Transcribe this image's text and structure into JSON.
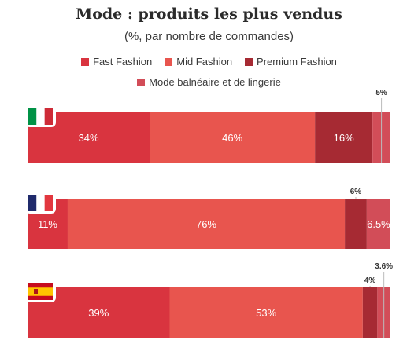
{
  "chart_data": {
    "type": "bar",
    "orientation": "horizontal",
    "stacked": true,
    "title": "Mode : produits les plus vendus",
    "subtitle": "(%, par nombre de commandes)",
    "series": [
      {
        "name": "Fast Fashion",
        "color": "#d9343f"
      },
      {
        "name": "Mid Fashion",
        "color": "#e8554e"
      },
      {
        "name": "Premium Fashion",
        "color": "#a62a33"
      },
      {
        "name": "Mode balnéaire et de lingerie",
        "color": "#d24d58"
      }
    ],
    "countries": [
      {
        "flag": "italy-flag",
        "values": [
          34,
          46,
          16,
          5
        ],
        "labels": [
          "34%",
          "46%",
          "16%",
          "5%"
        ]
      },
      {
        "flag": "france-flag",
        "values": [
          11,
          76,
          6,
          6.5
        ],
        "labels": [
          "11%",
          "76%",
          "6%",
          "6.5%"
        ]
      },
      {
        "flag": "spain-flag",
        "values": [
          39,
          53,
          4,
          3.6
        ],
        "labels": [
          "39%",
          "53%",
          "4%",
          "3.6%"
        ]
      }
    ]
  }
}
